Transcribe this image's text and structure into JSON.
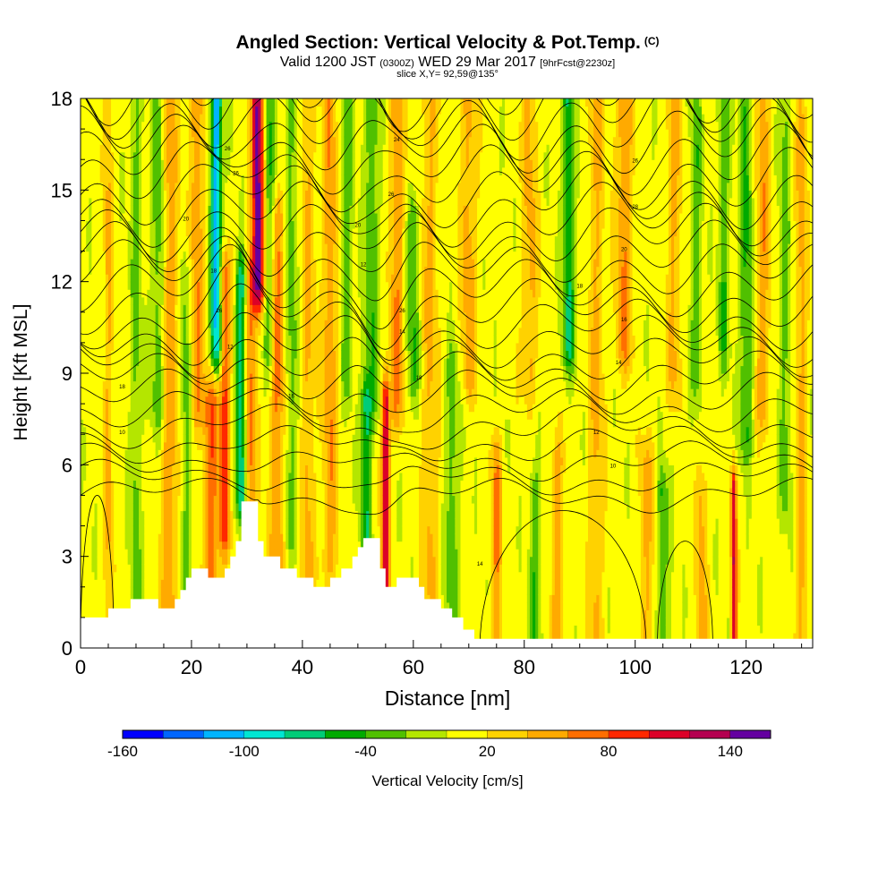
{
  "chart_data": {
    "type": "heatmap",
    "title": "Angled Section: Vertical Velocity & Pot.Temp.",
    "title_flag": "(C)",
    "subtitle_prefix": "Valid 1200 JST",
    "subtitle_z": "(0300Z)",
    "subtitle_date": "WED 29 Mar 2017",
    "subtitle_fcst": "[9hrFcst@2230z]",
    "slice_info": "slice X,Y= 92,59@135°",
    "xlabel": "Distance [nm]",
    "ylabel": "Height [Kft MSL]",
    "xlim": [
      0,
      132
    ],
    "ylim": [
      0,
      18
    ],
    "x_ticks": [
      0,
      20,
      40,
      60,
      80,
      100,
      120
    ],
    "y_ticks": [
      0,
      3,
      6,
      9,
      12,
      15,
      18
    ],
    "colorbar": {
      "label": "Vertical Velocity [cm/s]",
      "tick_labels": [
        "-160",
        "-100",
        "-40",
        "20",
        "80",
        "140"
      ],
      "tick_values": [
        -160,
        -100,
        -40,
        20,
        80,
        140
      ],
      "range": [
        -160,
        160
      ],
      "colors": [
        "#0000ff",
        "#0066ff",
        "#00b4ff",
        "#00e6d2",
        "#00cc78",
        "#00aa00",
        "#50c000",
        "#b4e600",
        "#ffff00",
        "#ffd200",
        "#ffaa00",
        "#ff6e00",
        "#ff2800",
        "#dc0028",
        "#b40050",
        "#6400a0"
      ]
    },
    "terrain_kft": [
      [
        0,
        1
      ],
      [
        4,
        1
      ],
      [
        5,
        1.3
      ],
      [
        8,
        1.3
      ],
      [
        9,
        1.6
      ],
      [
        13,
        1.6
      ],
      [
        14,
        1.3
      ],
      [
        16,
        1.3
      ],
      [
        17,
        1.6
      ],
      [
        18,
        1.9
      ],
      [
        19,
        2.3
      ],
      [
        20,
        2.6
      ],
      [
        22,
        2.6
      ],
      [
        23,
        2.3
      ],
      [
        25,
        2.3
      ],
      [
        26,
        2.6
      ],
      [
        27,
        3.0
      ],
      [
        28,
        3.5
      ],
      [
        29,
        4.8
      ],
      [
        31,
        4.8
      ],
      [
        32,
        3.5
      ],
      [
        33,
        3.0
      ],
      [
        35,
        3.0
      ],
      [
        36,
        2.6
      ],
      [
        38,
        2.6
      ],
      [
        39,
        2.3
      ],
      [
        40,
        2.3
      ],
      [
        42,
        2.0
      ],
      [
        44,
        2.0
      ],
      [
        45,
        2.3
      ],
      [
        47,
        2.6
      ],
      [
        49,
        3.0
      ],
      [
        50,
        3.3
      ],
      [
        51,
        3.6
      ],
      [
        53,
        3.6
      ],
      [
        54,
        2.6
      ],
      [
        55,
        2.0
      ],
      [
        56,
        2.0
      ],
      [
        57,
        2.3
      ],
      [
        60,
        2.3
      ],
      [
        61,
        2.0
      ],
      [
        62,
        1.6
      ],
      [
        65,
        1.3
      ],
      [
        67,
        1.0
      ],
      [
        69,
        0.6
      ],
      [
        71,
        0.3
      ],
      [
        132,
        0.3
      ]
    ],
    "velocity_features": [
      {
        "x": 5,
        "w": 0.8,
        "v": 35,
        "z0": 0,
        "z1": 18
      },
      {
        "x": 10,
        "w": 1.0,
        "v": -35,
        "z0": 0,
        "z1": 18
      },
      {
        "x": 14,
        "w": 1.2,
        "v": -45,
        "z0": 8,
        "z1": 18
      },
      {
        "x": 16,
        "w": 1.5,
        "v": 45,
        "z0": 1,
        "z1": 18
      },
      {
        "x": 19,
        "w": 1.0,
        "v": -35,
        "z0": 2,
        "z1": 12
      },
      {
        "x": 21,
        "w": 1.2,
        "v": 50,
        "z0": 8,
        "z1": 18
      },
      {
        "x": 23.5,
        "w": 1.4,
        "v": 65,
        "z0": 2,
        "z1": 8
      },
      {
        "x": 24.5,
        "w": 1.0,
        "v": -120,
        "z0": 10,
        "z1": 18
      },
      {
        "x": 26,
        "w": 1.0,
        "v": 80,
        "z0": 4,
        "z1": 12
      },
      {
        "x": 29,
        "w": 1.0,
        "v": -95,
        "z0": 5,
        "z1": 12
      },
      {
        "x": 30.5,
        "w": 1.2,
        "v": 60,
        "z0": 4,
        "z1": 12
      },
      {
        "x": 32,
        "w": 1.1,
        "v": 140,
        "z0": 12,
        "z1": 18
      },
      {
        "x": 34,
        "w": 1.0,
        "v": -50,
        "z0": 10,
        "z1": 18
      },
      {
        "x": 35.5,
        "w": 1.3,
        "v": 55,
        "z0": 3,
        "z1": 14
      },
      {
        "x": 38,
        "w": 1.2,
        "v": -35,
        "z0": 4,
        "z1": 18
      },
      {
        "x": 41,
        "w": 1.3,
        "v": 35,
        "z0": 2,
        "z1": 18
      },
      {
        "x": 45,
        "w": 1.4,
        "v": 45,
        "z0": 3,
        "z1": 18
      },
      {
        "x": 48,
        "w": 1.0,
        "v": -40,
        "z0": 9,
        "z1": 18
      },
      {
        "x": 51.5,
        "w": 0.9,
        "v": -65,
        "z0": 3,
        "z1": 8
      },
      {
        "x": 52.5,
        "w": 1.5,
        "v": -40,
        "z0": 8,
        "z1": 18
      },
      {
        "x": 55,
        "w": 0.7,
        "v": 115,
        "z0": 2,
        "z1": 8
      },
      {
        "x": 57,
        "w": 1.2,
        "v": 50,
        "z0": 8,
        "z1": 18
      },
      {
        "x": 60,
        "w": 1.0,
        "v": -50,
        "z0": 9,
        "z1": 14
      },
      {
        "x": 63,
        "w": 1.5,
        "v": 35,
        "z0": 2,
        "z1": 18
      },
      {
        "x": 67,
        "w": 1.2,
        "v": -40,
        "z0": 1,
        "z1": 9
      },
      {
        "x": 70,
        "w": 1.5,
        "v": 40,
        "z0": 9,
        "z1": 18
      },
      {
        "x": 75,
        "w": 1.0,
        "v": 50,
        "z0": 0,
        "z1": 6
      },
      {
        "x": 81,
        "w": 1.5,
        "v": 35,
        "z0": 9,
        "z1": 18
      },
      {
        "x": 82,
        "w": 1.0,
        "v": -45,
        "z0": 0,
        "z1": 5
      },
      {
        "x": 86,
        "w": 1.0,
        "v": 45,
        "z0": 0,
        "z1": 6
      },
      {
        "x": 88,
        "w": 1.1,
        "v": -70,
        "z0": 10,
        "z1": 18
      },
      {
        "x": 93,
        "w": 1.3,
        "v": 35,
        "z0": 0,
        "z1": 18
      },
      {
        "x": 98,
        "w": 1.5,
        "v": 50,
        "z0": 10,
        "z1": 18
      },
      {
        "x": 102,
        "w": 1.3,
        "v": 35,
        "z0": 0,
        "z1": 6
      },
      {
        "x": 105,
        "w": 1.0,
        "v": -50,
        "z0": 0,
        "z1": 5
      },
      {
        "x": 107,
        "w": 1.3,
        "v": 35,
        "z0": 9,
        "z1": 18
      },
      {
        "x": 111,
        "w": 1.0,
        "v": -40,
        "z0": 9,
        "z1": 18
      },
      {
        "x": 112,
        "w": 1.0,
        "v": 40,
        "z0": 0,
        "z1": 5
      },
      {
        "x": 116,
        "w": 1.0,
        "v": -45,
        "z0": 10,
        "z1": 18
      },
      {
        "x": 117.8,
        "w": 0.5,
        "v": 110,
        "z0": 0,
        "z1": 5
      },
      {
        "x": 120,
        "w": 1.2,
        "v": -50,
        "z0": 7,
        "z1": 18
      },
      {
        "x": 123,
        "w": 1.3,
        "v": 45,
        "z0": 8,
        "z1": 18
      },
      {
        "x": 127,
        "w": 1.0,
        "v": -35,
        "z0": 5,
        "z1": 18
      },
      {
        "x": 130,
        "w": 1.0,
        "v": 40,
        "z0": 0,
        "z1": 18
      }
    ],
    "theta_contours": {
      "count": 24,
      "labels": [
        {
          "x": 7.5,
          "z": 7.0,
          "text": "10"
        },
        {
          "x": 7.5,
          "z": 8.5,
          "text": "18"
        },
        {
          "x": 38,
          "z": 8.2,
          "text": "16"
        },
        {
          "x": 61,
          "z": 8.8,
          "text": "18"
        },
        {
          "x": 93,
          "z": 7.0,
          "text": "12"
        },
        {
          "x": 96,
          "z": 5.9,
          "text": "10"
        },
        {
          "x": 97,
          "z": 9.3,
          "text": "14"
        },
        {
          "x": 98,
          "z": 10.7,
          "text": "16"
        },
        {
          "x": 90,
          "z": 11.8,
          "text": "18"
        },
        {
          "x": 98,
          "z": 13.0,
          "text": "20"
        },
        {
          "x": 100,
          "z": 14.4,
          "text": "28"
        },
        {
          "x": 100,
          "z": 15.9,
          "text": "26"
        },
        {
          "x": 58,
          "z": 10.3,
          "text": "14"
        },
        {
          "x": 58,
          "z": 11.0,
          "text": "26"
        },
        {
          "x": 51,
          "z": 12.5,
          "text": "12"
        },
        {
          "x": 50,
          "z": 13.8,
          "text": "20"
        },
        {
          "x": 56,
          "z": 14.8,
          "text": "26"
        },
        {
          "x": 57,
          "z": 16.6,
          "text": "24"
        },
        {
          "x": 19,
          "z": 14.0,
          "text": "20"
        },
        {
          "x": 24,
          "z": 12.3,
          "text": "18"
        },
        {
          "x": 25,
          "z": 11.0,
          "text": "26"
        },
        {
          "x": 27,
          "z": 9.8,
          "text": "12"
        },
        {
          "x": 28,
          "z": 15.5,
          "text": "26"
        },
        {
          "x": 26.5,
          "z": 16.3,
          "text": "26"
        },
        {
          "x": 72,
          "z": 2.7,
          "text": "14"
        }
      ]
    }
  }
}
